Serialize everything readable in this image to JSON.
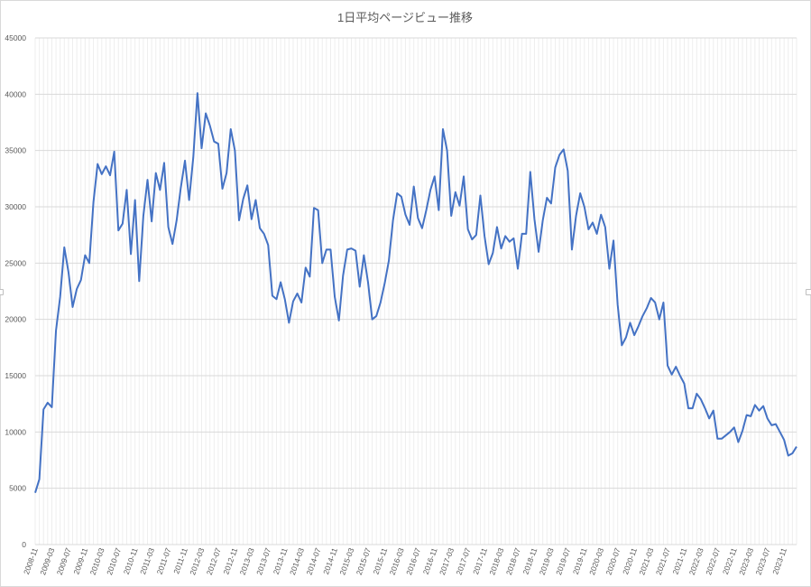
{
  "chart_data": {
    "type": "line",
    "title": "1日平均ページビュー推移",
    "xlabel": "",
    "ylabel": "",
    "ylim": [
      0,
      45000
    ],
    "y_ticks": [
      0,
      5000,
      10000,
      15000,
      20000,
      25000,
      30000,
      35000,
      40000,
      45000
    ],
    "x_tick_labels": [
      "2008-11",
      "2009-03",
      "2009-07",
      "2009-11",
      "2010-03",
      "2010-07",
      "2010-11",
      "2011-03",
      "2011-07",
      "2011-11",
      "2012-03",
      "2012-07",
      "2012-11",
      "2013-03",
      "2013-07",
      "2013-11",
      "2014-03",
      "2014-07",
      "2014-11",
      "2015-03",
      "2015-07",
      "2015-11",
      "2016-03",
      "2016-07",
      "2016-11",
      "2017-03",
      "2017-07",
      "2017-11",
      "2018-03",
      "2018-07",
      "2018-11",
      "2019-03",
      "2019-07",
      "2019-11",
      "2020-03",
      "2020-07",
      "2020-11",
      "2021-03",
      "2021-07",
      "2021-11",
      "2022-03",
      "2022-07",
      "2022-11",
      "2023-03",
      "2023-07",
      "2023-11"
    ],
    "grid": {
      "horizontal": true,
      "vertical": true
    },
    "line_color": "#4472c4",
    "series": [
      {
        "start": "2008-11",
        "values": [
          4600,
          5800,
          12000,
          12600,
          12200,
          19000,
          22000,
          26400,
          24200,
          21100,
          22700,
          23500,
          25700,
          25000,
          30400,
          33800,
          32900,
          33600,
          32800,
          34900,
          27900,
          28500,
          31500,
          25800,
          30600,
          23400,
          29200,
          32400,
          28700,
          33000,
          31500,
          33900,
          28200,
          26700,
          28800,
          31700,
          34100,
          30600,
          34400,
          40100,
          35200,
          38300,
          37200,
          35800,
          35600,
          31600,
          33000,
          36900,
          35000,
          28800,
          30700,
          31900,
          28900,
          30600,
          28100,
          27600,
          26600,
          22100,
          21800,
          23300,
          21800,
          19700,
          21600,
          22300,
          21500,
          24600,
          23800,
          29900,
          29700,
          25000,
          26200,
          26200,
          22000,
          19900,
          23900,
          26200,
          26300,
          26100,
          22900,
          25700,
          23300,
          20000,
          20300,
          21500,
          23200,
          25200,
          28800,
          31200,
          30900,
          29300,
          28400,
          31800,
          29000,
          28100,
          29700,
          31500,
          32700,
          29700,
          36900,
          35000,
          29200,
          31300,
          30100,
          32700,
          28000,
          27100,
          27500,
          31000,
          27400,
          24900,
          25900,
          28200,
          26300,
          27400,
          26900,
          27200,
          24500,
          27600,
          27600,
          33100,
          28900,
          26000,
          28800,
          30800,
          30300,
          33500,
          34600,
          35100,
          33200,
          26200,
          29200,
          31200,
          30000,
          28000,
          28600,
          27600,
          29300,
          28200,
          24500,
          27000,
          21300,
          17700,
          18400,
          19700,
          18600,
          19400,
          20300,
          21000,
          21900,
          21500,
          20000,
          21500,
          15900,
          15100,
          15800,
          15000,
          14300,
          12100,
          12100,
          13400,
          12900,
          12100,
          11200,
          11900,
          9400,
          9400,
          9700,
          10000,
          10400,
          9100,
          10100,
          11500,
          11400,
          12400,
          11900,
          12300,
          11200,
          10600,
          10700,
          10000,
          9300,
          7900,
          8100,
          8700
        ]
      }
    ]
  }
}
